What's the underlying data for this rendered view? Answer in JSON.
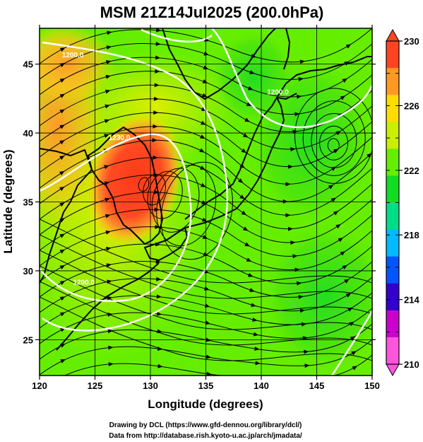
{
  "title": "MSM 21Z14Jul2025 (200.0hPa)",
  "map": {
    "xlabel": "Longitude (degrees)",
    "ylabel": "Latitude  (degrees)",
    "lon_range": [
      120,
      150
    ],
    "lat_range": [
      22.4,
      47.6
    ],
    "lon_ticks": [
      "120",
      "125",
      "130",
      "135",
      "140",
      "145",
      "150"
    ],
    "lat_ticks": [
      "25",
      "30",
      "35",
      "40",
      "45"
    ],
    "high_center": {
      "lon": 128.6,
      "lat": 36.6
    },
    "contour_labels": [
      {
        "text": "1230.0",
        "lon": 127.2,
        "lat": 39.5
      },
      {
        "text": "1200.0",
        "lon": 141.5,
        "lat": 42.8
      },
      {
        "text": "1200.0",
        "lon": 124.0,
        "lat": 29.0
      },
      {
        "text": "1200.0",
        "lon": 123.0,
        "lat": 45.5
      }
    ]
  },
  "colorbar": {
    "min": 210,
    "max": 230,
    "ticks": [
      "230",
      "226",
      "222",
      "218",
      "214",
      "210"
    ],
    "colors": [
      "#ff55dd",
      "#cc00cc",
      "#3300cc",
      "#0055ff",
      "#00bbff",
      "#00dd88",
      "#11dd22",
      "#66ee00",
      "#ccee00",
      "#ffdd00",
      "#ff9922",
      "#ff4422"
    ]
  },
  "credits": {
    "line1": "Drawing by DCL (https://www.gfd-dennou.org/library/dcl/)",
    "line2": "Data from http://database.rish.kyoto-u.ac.jp/arch/jmadata/"
  }
}
